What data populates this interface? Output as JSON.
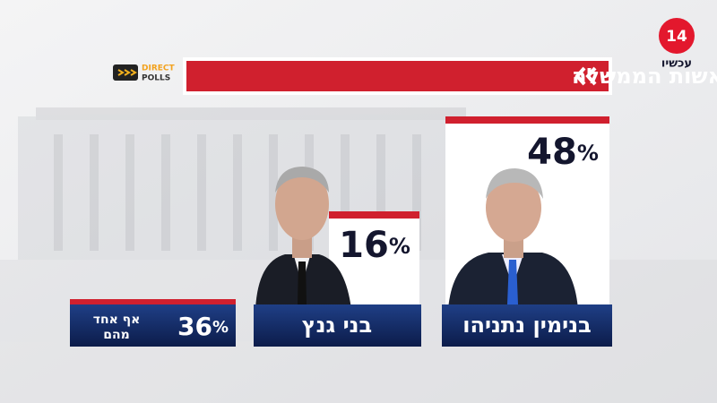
{
  "header": {
    "title": "התאמה לראשות הממשלה",
    "channel_number": "14",
    "channel_name": "עכשיו",
    "pollster_line1": "DIRECT",
    "pollster_line2": "POLLS"
  },
  "unit": "%",
  "candidates": [
    {
      "name": "בנימין נתניהו",
      "value": 48
    },
    {
      "name": "בני גנץ",
      "value": 16
    }
  ],
  "none": {
    "label_lines": [
      "אף אחד",
      "מהם"
    ],
    "value": 36
  }
}
